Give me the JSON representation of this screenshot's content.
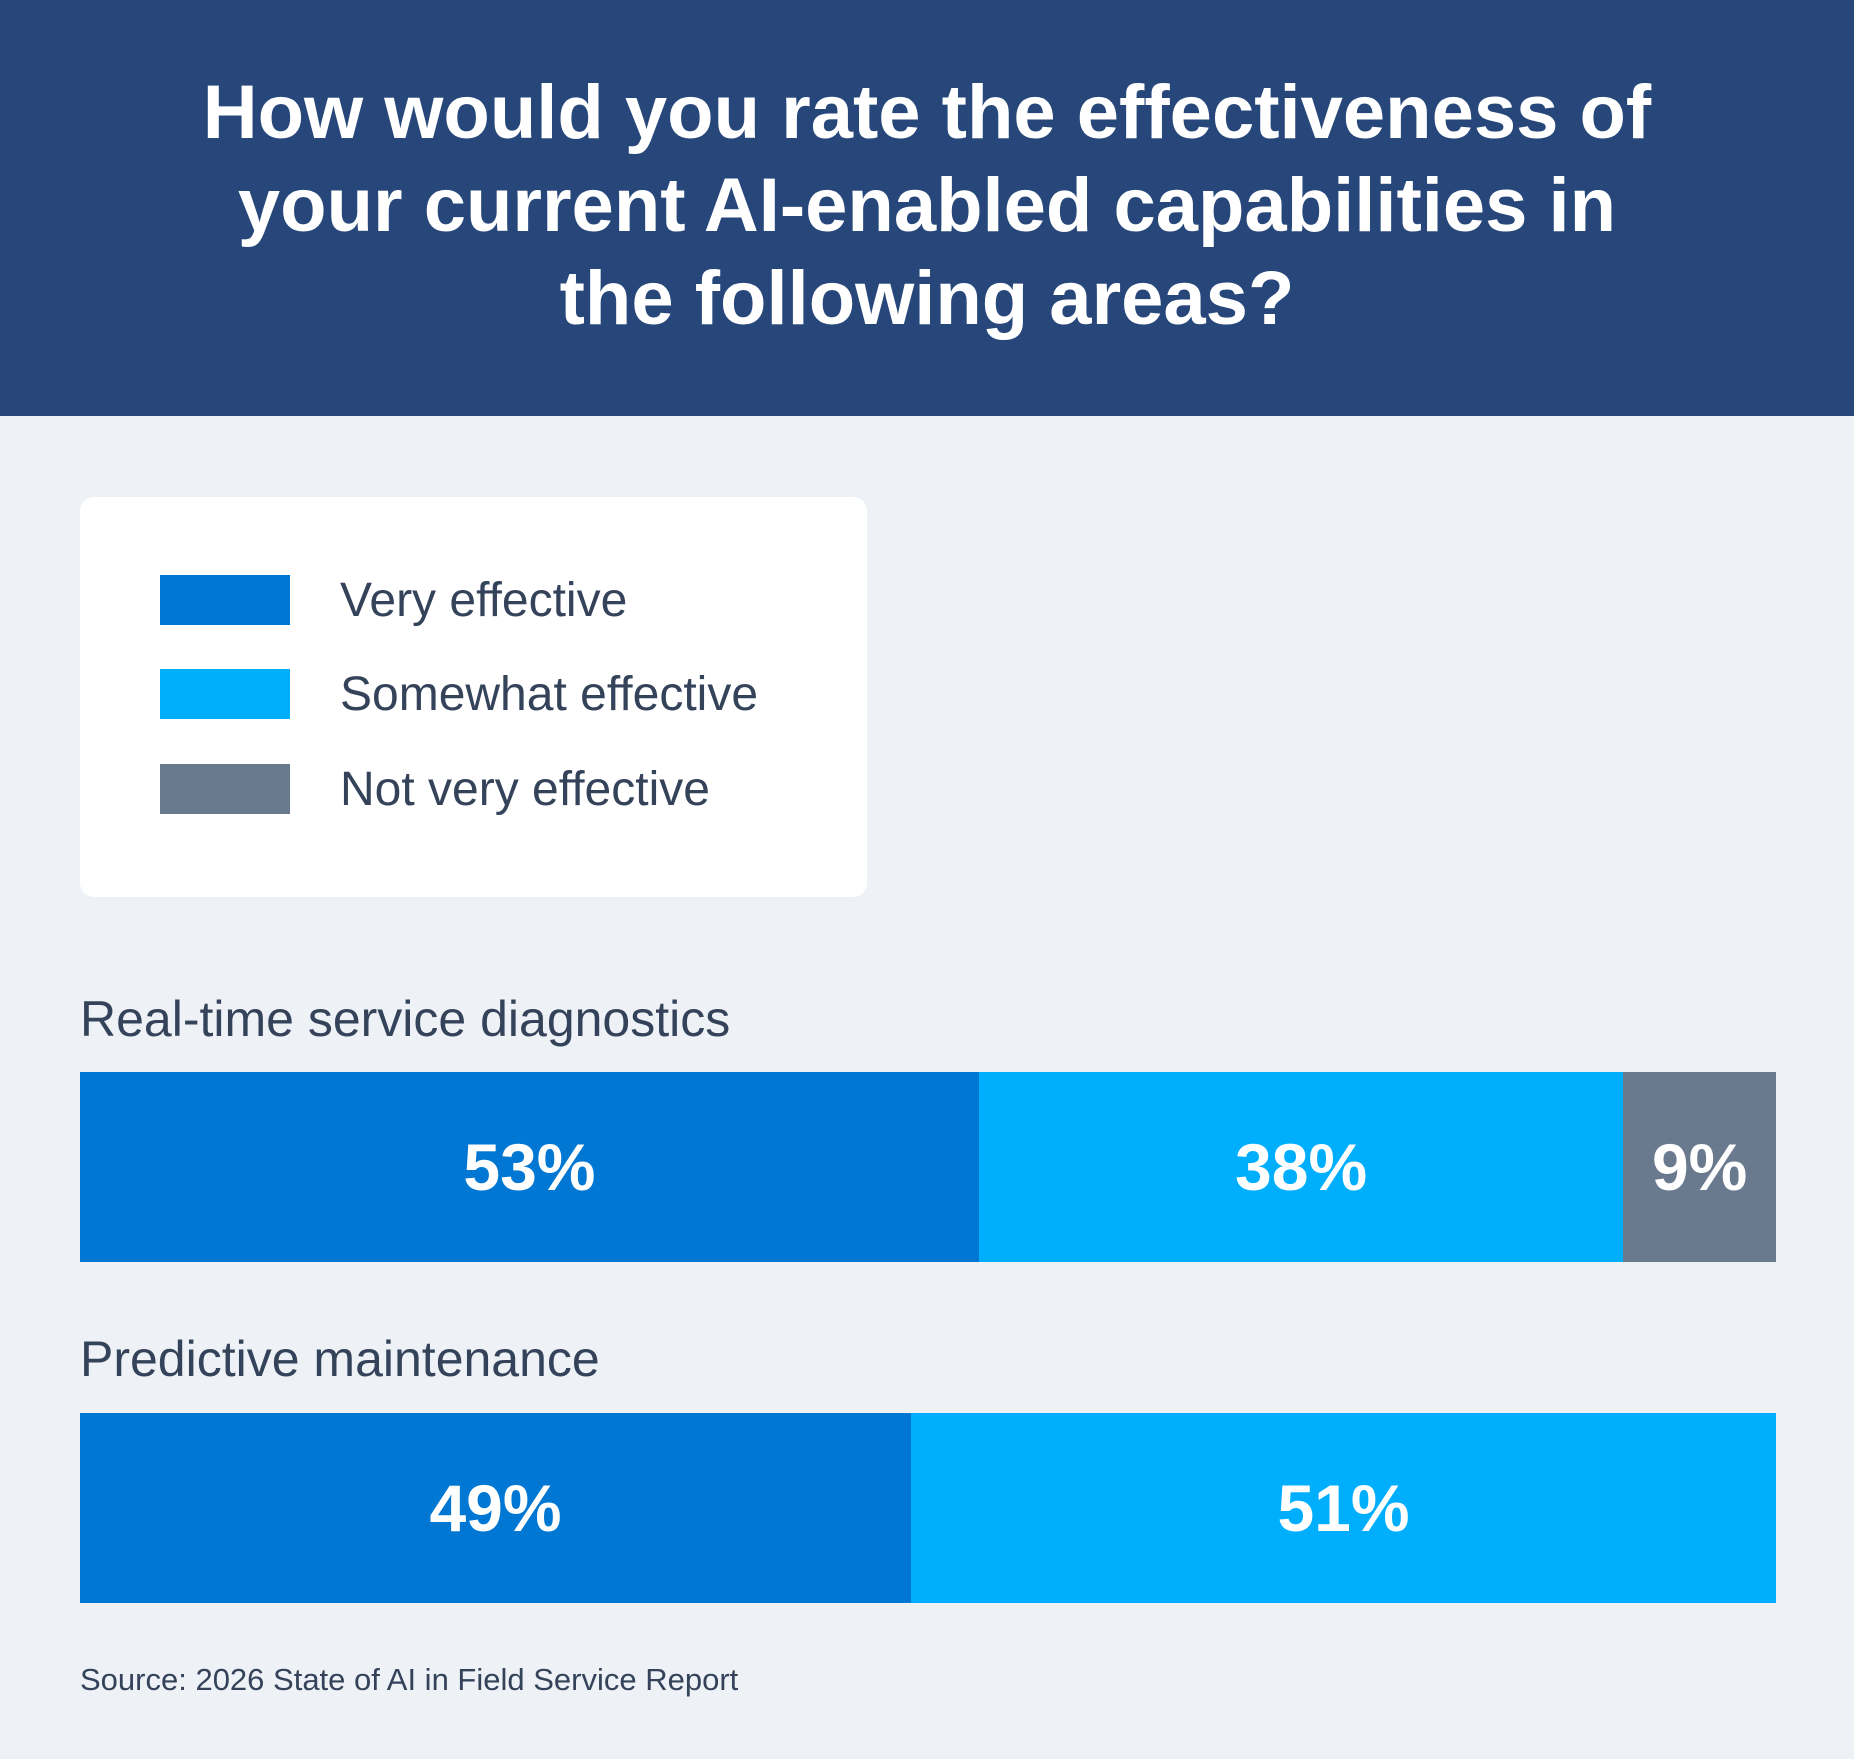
{
  "chart_data": {
    "type": "bar",
    "orientation": "horizontal-stacked-100",
    "title": "How would you rate the effectiveness of your current AI-enabled capabilities in the following areas?",
    "legend": {
      "placement": "top-left",
      "entries": [
        {
          "name": "Very effective",
          "color": "#0077d2"
        },
        {
          "name": "Somewhat effective",
          "color": "#00aefe"
        },
        {
          "name": "Not very effective",
          "color": "#6a7a8e"
        }
      ]
    },
    "categories": [
      "Real-time service diagnostics",
      "Predictive maintenance"
    ],
    "series": [
      {
        "name": "Very effective",
        "values": [
          53,
          49
        ],
        "labels": [
          "53%",
          "49%"
        ]
      },
      {
        "name": "Somewhat effective",
        "values": [
          38,
          51
        ],
        "labels": [
          "38%",
          "51%"
        ]
      },
      {
        "name": "Not very effective",
        "values": [
          9,
          0
        ],
        "labels": [
          "9%",
          ""
        ]
      }
    ],
    "xlim": [
      0,
      100
    ],
    "grid": false,
    "source": "Source: 2026 State of AI in Field Service Report"
  },
  "colors": {
    "header": "#27477a",
    "background": "#eef2f7",
    "text": "#34435a"
  }
}
